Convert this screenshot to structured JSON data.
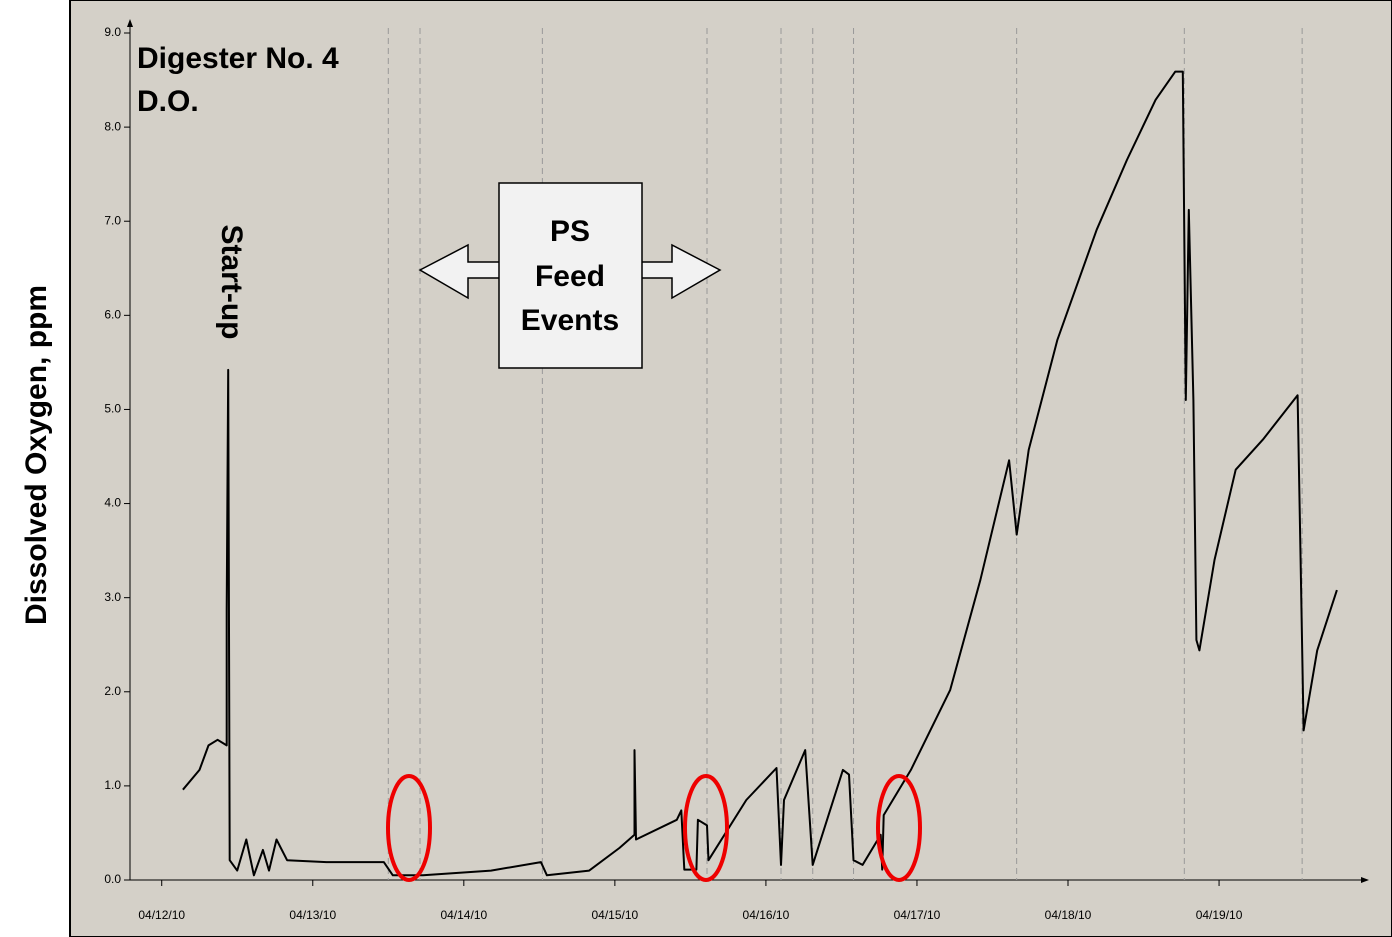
{
  "chart_data": {
    "type": "line",
    "ylabel": "Dissolved Oxygen, ppm",
    "annotations": [
      "Digester No. 4",
      "D.O.",
      "Start-up",
      "PS",
      "Feed",
      "Events"
    ],
    "color": "#000000",
    "x": [
      0.14,
      0.25,
      0.31,
      0.37,
      0.43,
      0.43,
      0.44,
      0.45,
      0.5,
      0.56,
      0.61,
      0.67,
      0.71,
      0.76,
      0.83,
      1.09,
      1.47,
      1.53,
      1.73,
      2.18,
      2.51,
      2.55,
      2.83,
      3.03,
      3.13,
      3.13,
      3.14,
      3.41,
      3.44,
      3.46,
      3.54,
      3.55,
      3.61,
      3.62,
      3.87,
      4.07,
      4.1,
      4.12,
      4.26,
      4.31,
      4.51,
      4.55,
      4.58,
      4.64,
      4.76,
      4.77,
      4.78,
      4.96,
      5.22,
      5.42,
      5.61,
      5.66,
      5.74,
      5.93,
      6.19,
      6.39,
      6.58,
      6.71,
      6.76,
      6.78,
      6.8,
      6.83,
      6.85,
      6.87,
      6.97,
      7.11,
      7.29,
      7.52,
      7.54,
      7.56,
      7.65,
      7.78
    ],
    "values": [
      0.96,
      1.17,
      1.43,
      1.49,
      1.43,
      2.87,
      5.42,
      0.21,
      0.1,
      0.43,
      0.05,
      0.32,
      0.1,
      0.43,
      0.21,
      0.19,
      0.19,
      0.05,
      0.05,
      0.1,
      0.19,
      0.05,
      0.1,
      0.34,
      0.48,
      1.38,
      0.43,
      0.64,
      0.74,
      0.11,
      0.11,
      0.64,
      0.58,
      0.21,
      0.85,
      1.19,
      0.16,
      0.85,
      1.38,
      0.16,
      1.17,
      1.12,
      0.21,
      0.16,
      0.48,
      0.11,
      0.69,
      1.17,
      2.02,
      3.19,
      4.46,
      3.67,
      4.57,
      5.74,
      6.91,
      7.65,
      8.29,
      8.59,
      8.59,
      5.1,
      7.12,
      5.1,
      2.55,
      2.44,
      3.4,
      4.36,
      4.68,
      5.15,
      3.4,
      1.59,
      2.44,
      3.08
    ],
    "event_lines": [
      1.5,
      1.71,
      2.52,
      3.61,
      4.1,
      4.31,
      4.58,
      5.66,
      6.77,
      7.55
    ],
    "xlim": [
      -0.21,
      7.9
    ],
    "xticks": [
      {
        "value": 0,
        "label": "04/12/10"
      },
      {
        "value": 1,
        "label": "04/13/10"
      },
      {
        "value": 2,
        "label": "04/14/10"
      },
      {
        "value": 3,
        "label": "04/15/10"
      },
      {
        "value": 4,
        "label": "04/16/10"
      },
      {
        "value": 5,
        "label": "04/17/10"
      },
      {
        "value": 6,
        "label": "04/18/10"
      },
      {
        "value": 7,
        "label": "04/19/10"
      }
    ],
    "ylim": [
      0,
      9
    ],
    "yticks": [
      {
        "value": 0,
        "label": "0.0"
      },
      {
        "value": 1,
        "label": "1.0"
      },
      {
        "value": 2,
        "label": "2.0"
      },
      {
        "value": 3,
        "label": "3.0"
      },
      {
        "value": 4,
        "label": "4.0"
      },
      {
        "value": 5,
        "label": "5.0"
      },
      {
        "value": 6,
        "label": "6.0"
      },
      {
        "value": 7,
        "label": "7.0"
      },
      {
        "value": 8,
        "label": "8.0"
      },
      {
        "value": 9,
        "label": "9.0"
      }
    ]
  }
}
